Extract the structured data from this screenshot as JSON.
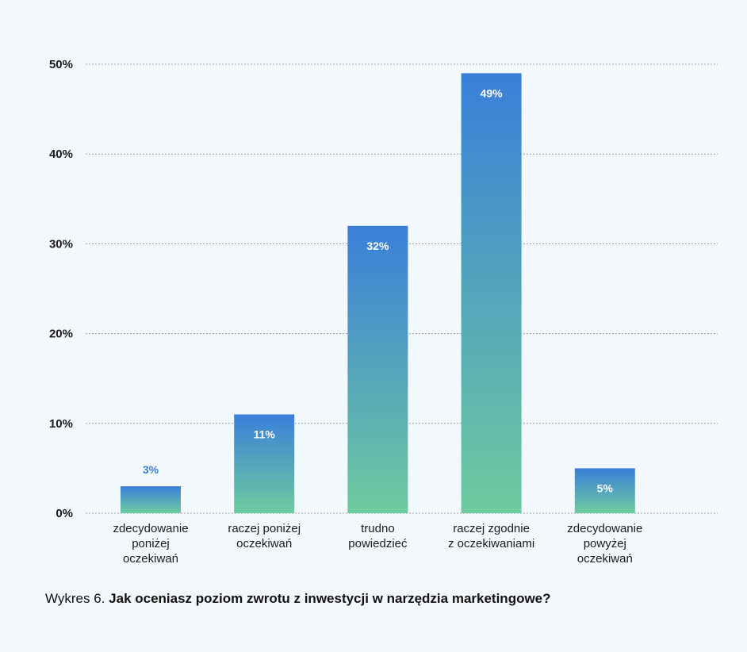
{
  "chart_data": {
    "type": "bar",
    "categories": [
      "zdecydowanie\nponiżej\noczekiwań",
      "raczej poniżej\noczekiwań",
      "trudno\npowiedzieć",
      "raczej zgodnie\nz oczekiwaniami",
      "zdecydowanie\npowyżej\noczekiwań"
    ],
    "values": [
      3,
      11,
      32,
      49,
      5
    ],
    "data_labels": [
      "3%",
      "11%",
      "32%",
      "49%",
      "5%"
    ],
    "ylim": [
      0,
      50
    ],
    "yticks": [
      0,
      10,
      20,
      30,
      40,
      50
    ],
    "ytick_labels": [
      "0%",
      "10%",
      "20%",
      "30%",
      "40%",
      "50%"
    ],
    "grid": true,
    "colors": {
      "bar_top": "#3a7fd9",
      "bar_bottom": "#6ecb9f",
      "grid": "#9aa0a6",
      "outside_label": "#3a7fd9"
    }
  },
  "caption": {
    "number": "Wykres 6.",
    "question": "Jak oceniasz poziom zwrotu z inwestycji w narzędzia marketingowe?"
  }
}
